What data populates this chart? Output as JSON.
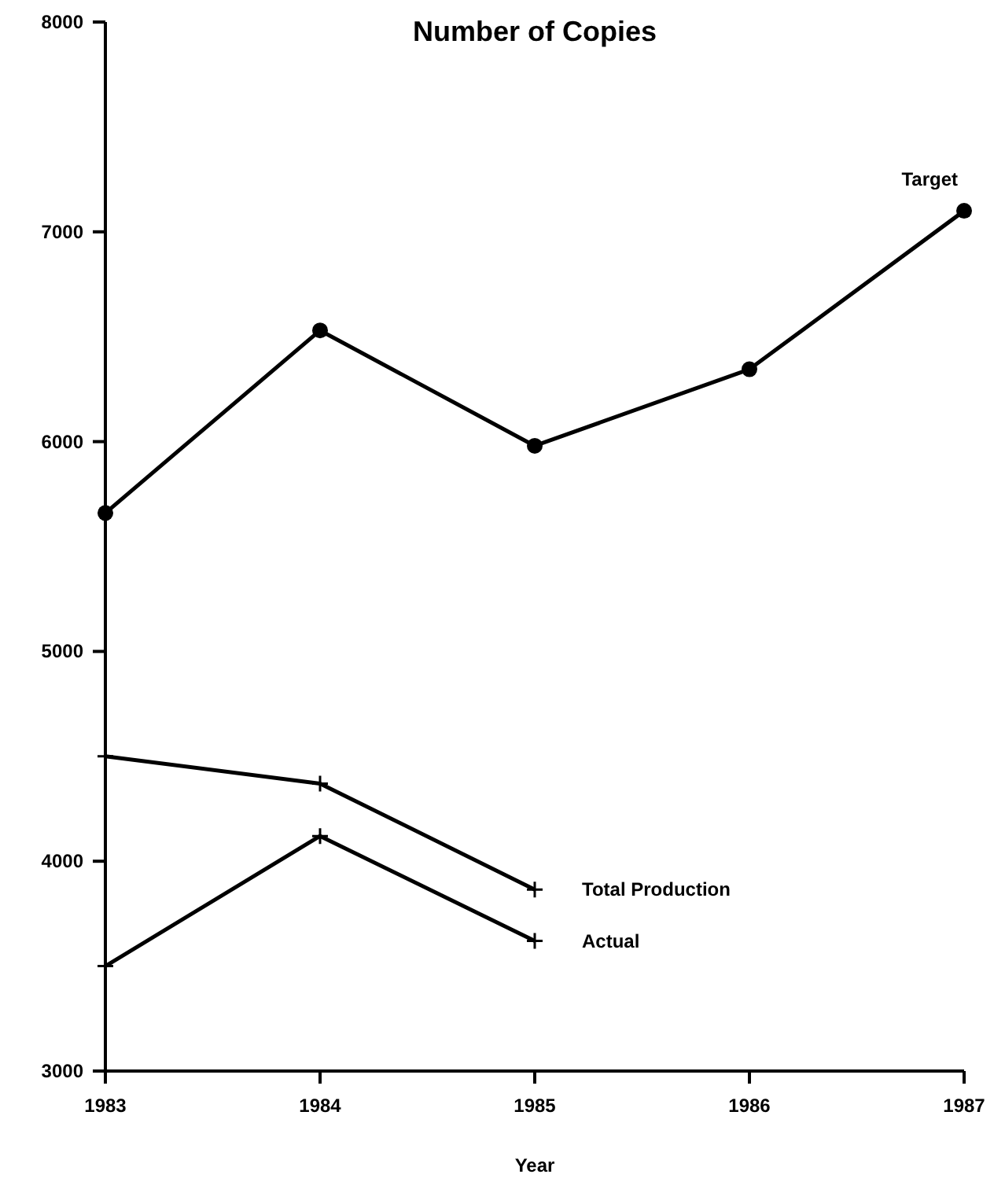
{
  "chart_data": {
    "type": "line",
    "title": "Number of Copies",
    "xlabel": "Year",
    "x": [
      1983,
      1984,
      1985,
      1986,
      1987
    ],
    "series": [
      {
        "name": "Target",
        "color": "#000000",
        "marker": "circle",
        "values": [
          5660,
          6530,
          5980,
          6345,
          7100
        ]
      },
      {
        "name": "Total Production",
        "color": "#000000",
        "marker": "cross",
        "values": [
          4500,
          4370,
          3865,
          null,
          null
        ]
      },
      {
        "name": "Actual",
        "color": "#000000",
        "marker": "cross",
        "values": [
          3500,
          4120,
          3620,
          null,
          null
        ]
      }
    ],
    "xlim": [
      1983,
      1987
    ],
    "xticks": [
      1983,
      1984,
      1985,
      1986,
      1987
    ],
    "ylim": [
      3000,
      8000
    ],
    "yticks": [
      3000,
      4000,
      5000,
      6000,
      7000,
      8000
    ],
    "grid": false,
    "line_style": "solid"
  }
}
